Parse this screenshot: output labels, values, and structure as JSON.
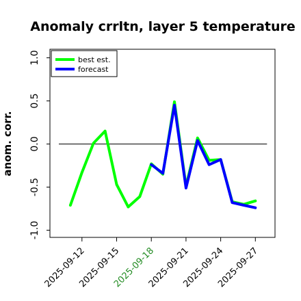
{
  "chart_data": {
    "type": "line",
    "title": "Anomaly crrltn, layer 5 temperature",
    "xlabel": "",
    "ylabel": "anom. corr.",
    "ylim": [
      -1.0,
      1.0
    ],
    "yticks": [
      {
        "value": -1.0,
        "label": "-1.0"
      },
      {
        "value": -0.5,
        "label": "-0.5"
      },
      {
        "value": 0.0,
        "label": "0.0"
      },
      {
        "value": 0.5,
        "label": "0.5"
      },
      {
        "value": 1.0,
        "label": "1.0"
      }
    ],
    "x_start": "2025-09-10",
    "x_end": "2025-09-27",
    "xticks": [
      {
        "date": "2025-09-12",
        "label": "2025-09-12",
        "color": "#000000"
      },
      {
        "date": "2025-09-15",
        "label": "2025-09-15",
        "color": "#000000"
      },
      {
        "date": "2025-09-18",
        "label": "2025-09-18",
        "color": "#228b22"
      },
      {
        "date": "2025-09-21",
        "label": "2025-09-21",
        "color": "#000000"
      },
      {
        "date": "2025-09-24",
        "label": "2025-09-24",
        "color": "#000000"
      },
      {
        "date": "2025-09-27",
        "label": "2025-09-27",
        "color": "#000000"
      }
    ],
    "reference_line": 0.0,
    "legend_position": "top-left",
    "series": [
      {
        "name": "best est.",
        "color": "#00ff00",
        "points": [
          [
            "2025-09-11",
            -0.71
          ],
          [
            "2025-09-12",
            -0.33
          ],
          [
            "2025-09-13",
            0.01
          ],
          [
            "2025-09-14",
            0.15
          ],
          [
            "2025-09-15",
            -0.47
          ],
          [
            "2025-09-16",
            -0.73
          ],
          [
            "2025-09-17",
            -0.61
          ],
          [
            "2025-09-18",
            -0.23
          ],
          [
            "2025-09-19",
            -0.35
          ],
          [
            "2025-09-20",
            0.49
          ],
          [
            "2025-09-21",
            -0.49
          ],
          [
            "2025-09-22",
            0.07
          ],
          [
            "2025-09-23",
            -0.19
          ],
          [
            "2025-09-24",
            -0.18
          ],
          [
            "2025-09-25",
            -0.67
          ],
          [
            "2025-09-26",
            -0.7
          ],
          [
            "2025-09-27",
            -0.66
          ]
        ]
      },
      {
        "name": "forecast",
        "color": "#0000ff",
        "points": [
          [
            "2025-09-18",
            -0.24
          ],
          [
            "2025-09-19",
            -0.34
          ],
          [
            "2025-09-20",
            0.45
          ],
          [
            "2025-09-21",
            -0.51
          ],
          [
            "2025-09-22",
            0.04
          ],
          [
            "2025-09-23",
            -0.24
          ],
          [
            "2025-09-24",
            -0.18
          ],
          [
            "2025-09-25",
            -0.68
          ],
          [
            "2025-09-26",
            -0.71
          ],
          [
            "2025-09-27",
            -0.74
          ]
        ]
      }
    ]
  }
}
